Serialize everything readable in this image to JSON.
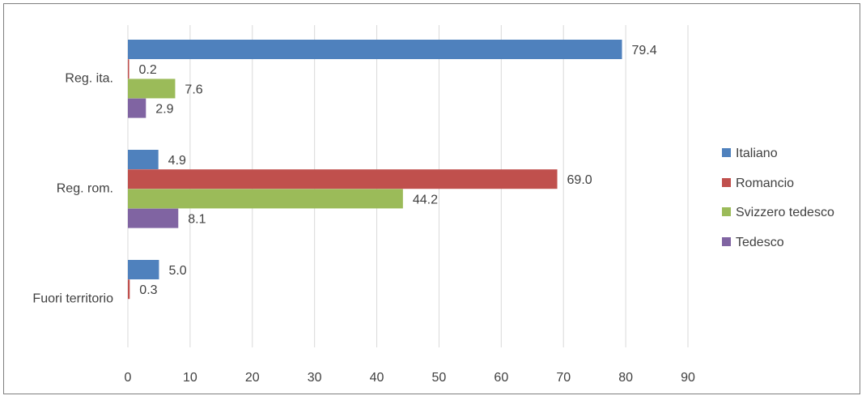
{
  "chart_data": {
    "type": "bar",
    "orientation": "horizontal",
    "categories": [
      "Reg. ita.",
      "Reg. rom.",
      "Fuori territorio"
    ],
    "series": [
      {
        "name": "Italiano",
        "color": "#4f81bd",
        "values": [
          79.4,
          4.9,
          5.0
        ],
        "labels": [
          "79.4",
          "4.9",
          "5.0"
        ]
      },
      {
        "name": "Romancio",
        "color": "#c0504d",
        "values": [
          0.2,
          69.0,
          0.3
        ],
        "labels": [
          "0.2",
          "69.0",
          "0.3"
        ]
      },
      {
        "name": "Svizzero tedesco",
        "color": "#9bbb59",
        "values": [
          7.6,
          44.2,
          null
        ],
        "labels": [
          "7.6",
          "44.2",
          null
        ]
      },
      {
        "name": "Tedesco",
        "color": "#8064a2",
        "values": [
          2.9,
          8.1,
          null
        ],
        "labels": [
          "2.9",
          "8.1",
          null
        ]
      }
    ],
    "xlim": [
      0,
      90
    ],
    "xticks": [
      "0",
      "10",
      "20",
      "30",
      "40",
      "50",
      "60",
      "70",
      "80",
      "90"
    ],
    "grid": true,
    "legend_position": "right"
  }
}
